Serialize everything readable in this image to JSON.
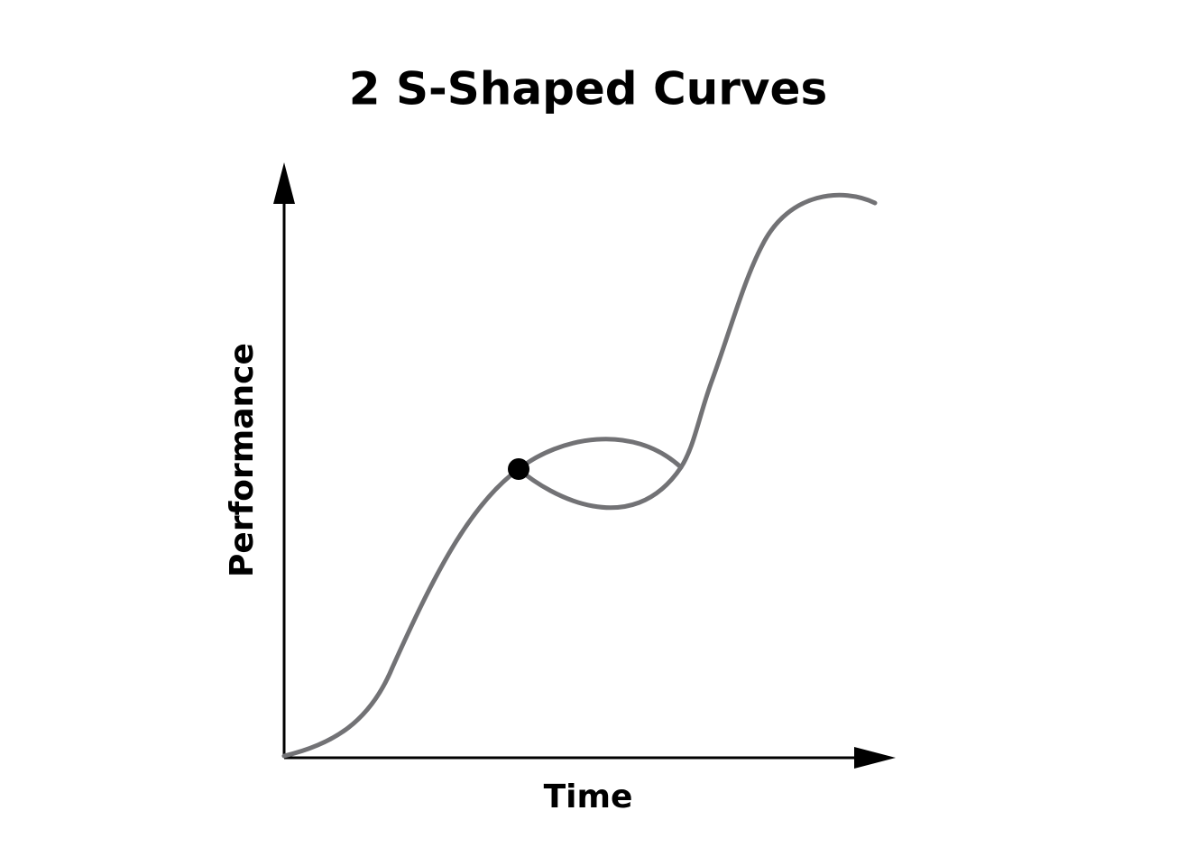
{
  "title": "2 S-Shaped Curves",
  "x_axis_label": "Time",
  "y_axis_label": "Performance"
}
